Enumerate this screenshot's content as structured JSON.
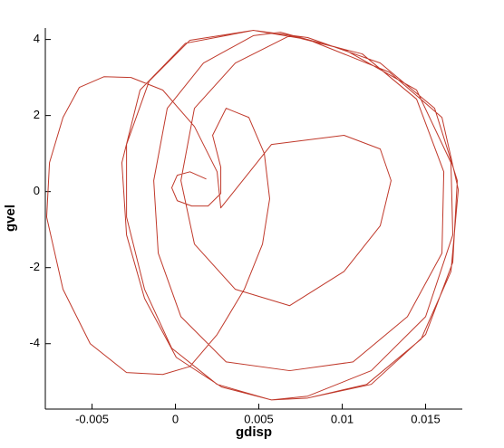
{
  "chart_data": {
    "type": "line",
    "x_label": "gdisp",
    "y_label": "gvel",
    "xlim": [
      -0.0078,
      0.0172
    ],
    "ylim": [
      -5.72,
      4.3
    ],
    "xticks": [
      -0.005,
      0,
      0.005,
      0.01,
      0.015
    ],
    "yticks": [
      -4,
      -2,
      0,
      2,
      4
    ],
    "series": [
      {
        "color": "#c0392b",
        "x": [
          0.00185,
          0.00087,
          0.00011,
          -0.00022,
          0.00011,
          0.00098,
          0.00196,
          0.00272,
          0.00272,
          0.00223,
          0.00304,
          0.0044,
          0.00533,
          0.00565,
          0.00522,
          0.00413,
          0.0025,
          0.00087,
          -0.00076,
          -0.00293,
          -0.00511,
          -0.00674,
          -0.00772,
          -0.00755,
          -0.00674,
          -0.00576,
          -0.00429,
          -0.00266,
          -0.00076,
          0.00114,
          0.0025,
          0.00272,
          0.00576,
          0.01011,
          0.01228,
          0.01293,
          0.01228,
          0.01011,
          0.00685,
          0.00359,
          0.00114,
          0.00033,
          0.00114,
          0.00359,
          0.00685,
          0.0112,
          0.01446,
          0.01609,
          0.01598,
          0.01391,
          0.01065,
          0.00685,
          0.00304,
          0.00033,
          -0.00103,
          -0.0013,
          -0.00049,
          0.00168,
          0.00467,
          0.0063,
          0.01011,
          0.01446,
          0.01652,
          0.01663,
          0.015,
          0.01174,
          0.00793,
          0.00576,
          0.0025,
          -0.00022,
          -0.00185,
          -0.00293,
          -0.00293,
          -0.00158,
          0.00087,
          0.00467,
          0.00793,
          0.01228,
          0.01554,
          0.0169,
          0.01663,
          0.015,
          0.01174,
          0.00793,
          0.00576,
          0.00277,
          5e-05,
          -0.00185,
          -0.00293,
          -0.00321,
          -0.00212,
          0.0006,
          0.00467,
          0.00793,
          0.01283,
          0.01598,
          0.01696,
          0.01652,
          0.01473,
          0.01147,
          0.00793
        ],
        "values": [
          0.33,
          0.52,
          0.43,
          0.1,
          -0.24,
          -0.38,
          -0.38,
          -0.05,
          0.64,
          1.48,
          2.19,
          1.95,
          1,
          -0.19,
          -1.38,
          -2.57,
          -3.76,
          -4.6,
          -4.81,
          -4.76,
          -4,
          -2.57,
          -0.67,
          0.76,
          1.95,
          2.74,
          3.02,
          3,
          2.67,
          1.71,
          0.52,
          -0.43,
          1.24,
          1.48,
          1.12,
          0.29,
          -0.9,
          -2.1,
          -3,
          -2.57,
          -1.38,
          0.29,
          2.19,
          3.38,
          4.1,
          3.62,
          2.43,
          0.52,
          -1.62,
          -3.29,
          -4.48,
          -4.71,
          -4.48,
          -3.29,
          -1.62,
          0.29,
          2.19,
          3.38,
          4.1,
          4.19,
          3.74,
          2.67,
          0.76,
          -1.14,
          -3.29,
          -4.71,
          -5.38,
          -5.48,
          -5.07,
          -4.12,
          -2.57,
          -0.67,
          1.24,
          2.9,
          3.98,
          4.24,
          4.05,
          3.38,
          2.19,
          0.29,
          -1.86,
          -3.76,
          -5.07,
          -5.43,
          -5.48,
          -5.14,
          -4.36,
          -2.81,
          -1.14,
          0.76,
          2.67,
          3.9,
          4.24,
          4,
          3.14,
          1.95,
          0.05,
          -2.1,
          -3.88,
          -5.07,
          -5.43
        ]
      }
    ]
  }
}
